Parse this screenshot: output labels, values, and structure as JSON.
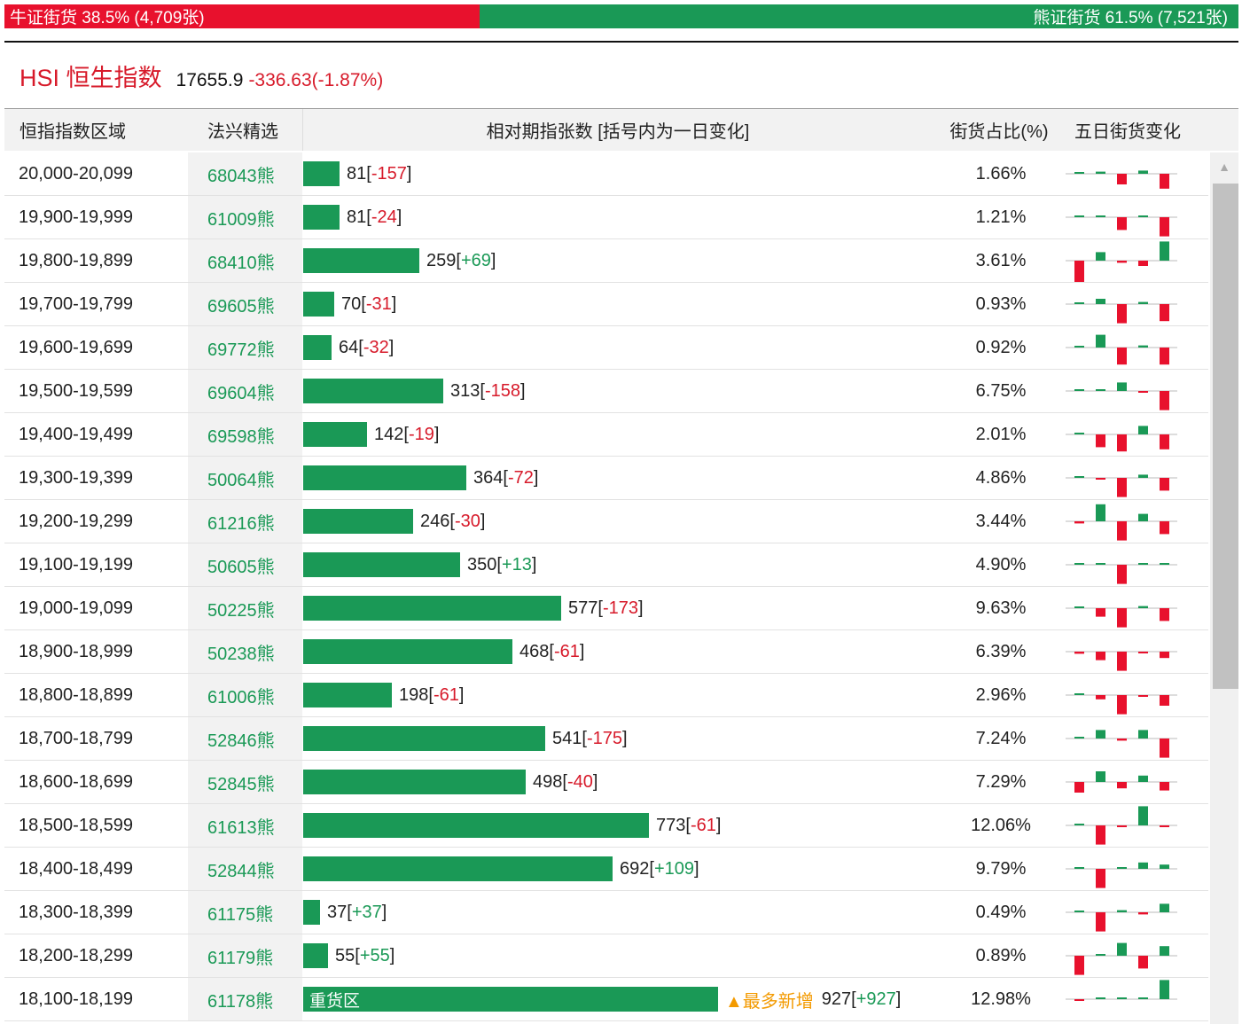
{
  "summary": {
    "bull_label": "牛证街货 38.5% (4,709张)",
    "bear_label": "熊证街货 61.5% (7,521张)",
    "bull_ratio": 0.385
  },
  "index": {
    "name": "HSI 恒生指数",
    "value": "17655.9",
    "change": "-336.63(-1.87%)"
  },
  "table": {
    "headers": [
      "恒指指数区域",
      "法兴精选",
      "相对期指张数 [括号内为一日变化]",
      "街货占比(%)",
      "五日街货变化"
    ],
    "max_count": 927,
    "rows": [
      {
        "range": "20,000-20,099",
        "code": "68043熊",
        "count": 81,
        "count_text": "81",
        "delta": "-157",
        "ratio": "1.66%",
        "spark": [
          0,
          0.1,
          -0.5,
          0.15,
          -0.7
        ]
      },
      {
        "range": "19,900-19,999",
        "code": "61009熊",
        "count": 81,
        "count_text": "81",
        "delta": "-24",
        "ratio": "1.21%",
        "spark": [
          0,
          0,
          -0.6,
          0,
          -0.9
        ]
      },
      {
        "range": "19,800-19,899",
        "code": "68410熊",
        "count": 259,
        "count_text": "259",
        "delta": "+69",
        "ratio": "3.61%",
        "spark": [
          -1,
          0.4,
          -0.1,
          -0.25,
          0.9
        ]
      },
      {
        "range": "19,700-19,799",
        "code": "69605熊",
        "count": 70,
        "count_text": "70",
        "delta": "-31",
        "ratio": "0.93%",
        "spark": [
          0,
          0.25,
          -0.9,
          0.1,
          -0.8
        ]
      },
      {
        "range": "19,600-19,699",
        "code": "69772熊",
        "count": 64,
        "count_text": "64",
        "delta": "-32",
        "ratio": "0.92%",
        "spark": [
          0,
          0.6,
          -0.8,
          0.1,
          -0.8
        ]
      },
      {
        "range": "19,500-19,599",
        "code": "69604熊",
        "count": 313,
        "count_text": "313",
        "delta": "-158",
        "ratio": "6.75%",
        "spark": [
          0,
          0.05,
          0.4,
          -0.05,
          -0.9
        ]
      },
      {
        "range": "19,400-19,499",
        "code": "69598熊",
        "count": 142,
        "count_text": "142",
        "delta": "-19",
        "ratio": "2.01%",
        "spark": [
          0,
          -0.6,
          -0.8,
          0.4,
          -0.7
        ]
      },
      {
        "range": "19,300-19,399",
        "code": "50064熊",
        "count": 364,
        "count_text": "364",
        "delta": "-72",
        "ratio": "4.86%",
        "spark": [
          0,
          -0.05,
          -0.9,
          0.15,
          -0.6
        ]
      },
      {
        "range": "19,200-19,299",
        "code": "61216熊",
        "count": 246,
        "count_text": "246",
        "delta": "-30",
        "ratio": "3.44%",
        "spark": [
          -0.1,
          0.8,
          -0.9,
          0.35,
          -0.6
        ]
      },
      {
        "range": "19,100-19,199",
        "code": "50605熊",
        "count": 350,
        "count_text": "350",
        "delta": "+13",
        "ratio": "4.90%",
        "spark": [
          0,
          0.05,
          -0.9,
          0.05,
          0.05
        ]
      },
      {
        "range": "19,000-19,099",
        "code": "50225熊",
        "count": 577,
        "count_text": "577",
        "delta": "-173",
        "ratio": "9.63%",
        "spark": [
          0,
          -0.4,
          -0.9,
          0.1,
          -0.6
        ]
      },
      {
        "range": "18,900-18,999",
        "code": "50238熊",
        "count": 468,
        "count_text": "468",
        "delta": "-61",
        "ratio": "6.39%",
        "spark": [
          -0.1,
          -0.4,
          -0.9,
          -0.05,
          -0.3
        ]
      },
      {
        "range": "18,800-18,899",
        "code": "61006熊",
        "count": 198,
        "count_text": "198",
        "delta": "-61",
        "ratio": "2.96%",
        "spark": [
          0,
          -0.2,
          -0.9,
          -0.05,
          -0.5
        ]
      },
      {
        "range": "18,700-18,799",
        "code": "52846熊",
        "count": 541,
        "count_text": "541",
        "delta": "-175",
        "ratio": "7.24%",
        "spark": [
          0,
          0.4,
          -0.1,
          0.4,
          -0.9
        ]
      },
      {
        "range": "18,600-18,699",
        "code": "52845熊",
        "count": 498,
        "count_text": "498",
        "delta": "-40",
        "ratio": "7.29%",
        "spark": [
          -0.5,
          0.5,
          -0.3,
          0.3,
          -0.4
        ]
      },
      {
        "range": "18,500-18,599",
        "code": "61613熊",
        "count": 773,
        "count_text": "773",
        "delta": "-61",
        "ratio": "12.06%",
        "spark": [
          0,
          -0.9,
          -0.05,
          0.9,
          -0.05
        ]
      },
      {
        "range": "18,400-18,499",
        "code": "52844熊",
        "count": 692,
        "count_text": "692",
        "delta": "+109",
        "ratio": "9.79%",
        "spark": [
          0,
          -0.9,
          0.05,
          0.3,
          0.2
        ]
      },
      {
        "range": "18,300-18,399",
        "code": "61175熊",
        "count": 37,
        "count_text": "37",
        "delta": "+37",
        "ratio": "0.49%",
        "spark": [
          0,
          -0.9,
          0.1,
          -0.1,
          0.4
        ]
      },
      {
        "range": "18,200-18,299",
        "code": "61179熊",
        "count": 55,
        "count_text": "55",
        "delta": "+55",
        "ratio": "0.89%",
        "spark": [
          -0.9,
          0,
          0.6,
          -0.6,
          0.45
        ]
      },
      {
        "range": "18,100-18,199",
        "code": "61178熊",
        "count": 927,
        "count_text": "927",
        "delta": "+927",
        "ratio": "12.98%",
        "spark": [
          -0.05,
          0,
          0,
          0,
          0.9
        ],
        "bar_text": "重货区",
        "tag": "▲最多新增"
      }
    ]
  },
  "colors": {
    "up": "#1a9956",
    "down": "#e8112d"
  }
}
